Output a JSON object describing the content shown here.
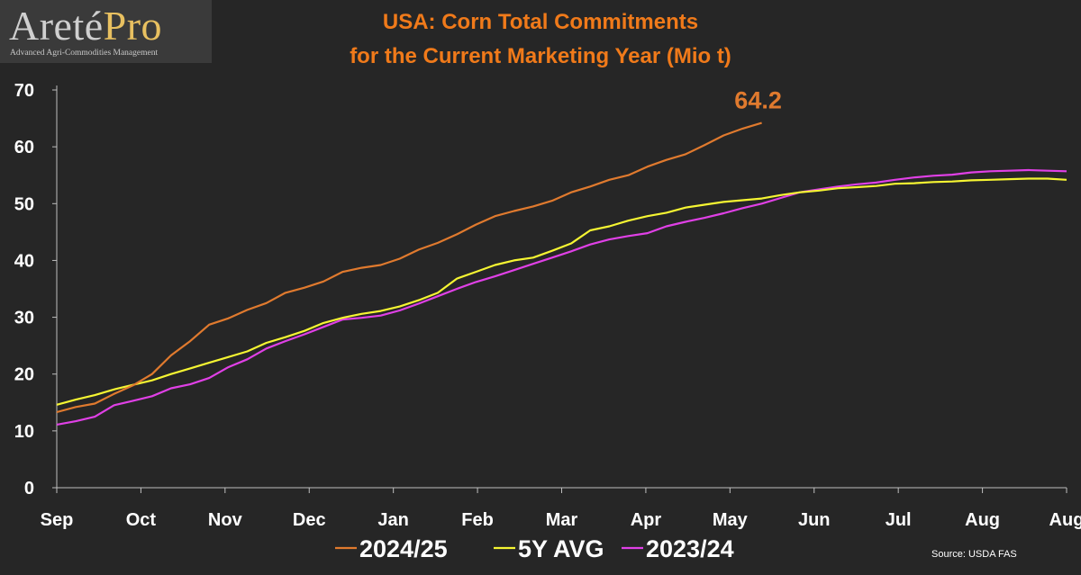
{
  "logo": {
    "word_a": "Areté",
    "word_b": "Pro",
    "tagline": "Advanced Agri-Commodities Management"
  },
  "source": "Source:  USDA FAS",
  "chart_data": {
    "type": "line",
    "title": [
      "USA: Corn Total Commitments",
      "for the Current Marketing Year (Mio t)"
    ],
    "xlabel": "",
    "ylabel": "",
    "ylim": [
      0,
      70
    ],
    "yticks": [
      0,
      10,
      20,
      30,
      40,
      50,
      60,
      70
    ],
    "grid": false,
    "legend_position": "bottom",
    "x_ticks": [
      "Sep",
      "Oct",
      "Nov",
      "Dec",
      "Jan",
      "Feb",
      "Mar",
      "Apr",
      "May",
      "Jun",
      "Jul",
      "Aug",
      "Aug"
    ],
    "x_unit": "week index from start of marketing year (week 0 = first week of Sep)",
    "annotation": {
      "text": "64.2",
      "series": "2024/25"
    },
    "series": [
      {
        "name": "2024/25",
        "color": "#e07a2e",
        "values": [
          13.3,
          14.2,
          14.8,
          16.5,
          18,
          20,
          23.3,
          25.8,
          28.7,
          29.8,
          31.3,
          32.5,
          34.3,
          35.2,
          36.3,
          38,
          38.7,
          39.2,
          40.3,
          41.9,
          43.1,
          44.6,
          46.3,
          47.8,
          48.7,
          49.5,
          50.5,
          52,
          53,
          54.2,
          55,
          56.5,
          57.7,
          58.7,
          60.3,
          62,
          63.2,
          64.2
        ]
      },
      {
        "name": "5Y AVG",
        "color": "#f5f532",
        "values": [
          14.6,
          15.5,
          16.3,
          17.3,
          18.1,
          18.9,
          20,
          21,
          22,
          23,
          24,
          25.5,
          26.5,
          27.6,
          29,
          29.9,
          30.6,
          31.1,
          31.9,
          33,
          34.3,
          36.8,
          38,
          39.2,
          40,
          40.5,
          41.7,
          43,
          45.3,
          46,
          47,
          47.8,
          48.4,
          49.3,
          49.8,
          50.3,
          50.6,
          50.9,
          51.5,
          52,
          52.3,
          52.7,
          52.9,
          53.1,
          53.5,
          53.6,
          53.8,
          53.9,
          54.1,
          54.2,
          54.3,
          54.4,
          54.4,
          54.2
        ]
      },
      {
        "name": "2023/24",
        "color": "#e040e6",
        "values": [
          11.1,
          11.7,
          12.5,
          14.5,
          15.3,
          16.1,
          17.5,
          18.2,
          19.3,
          21.2,
          22.6,
          24.5,
          25.8,
          27,
          28.3,
          29.6,
          29.9,
          30.3,
          31.2,
          32.4,
          33.7,
          35,
          36.2,
          37.2,
          38.3,
          39.4,
          40.5,
          41.6,
          42.8,
          43.7,
          44.3,
          44.8,
          46,
          46.8,
          47.5,
          48.3,
          49.2,
          50,
          51,
          52,
          52.5,
          53,
          53.4,
          53.7,
          54.2,
          54.6,
          54.9,
          55.1,
          55.5,
          55.7,
          55.8,
          55.9,
          55.8,
          55.7
        ]
      }
    ]
  }
}
